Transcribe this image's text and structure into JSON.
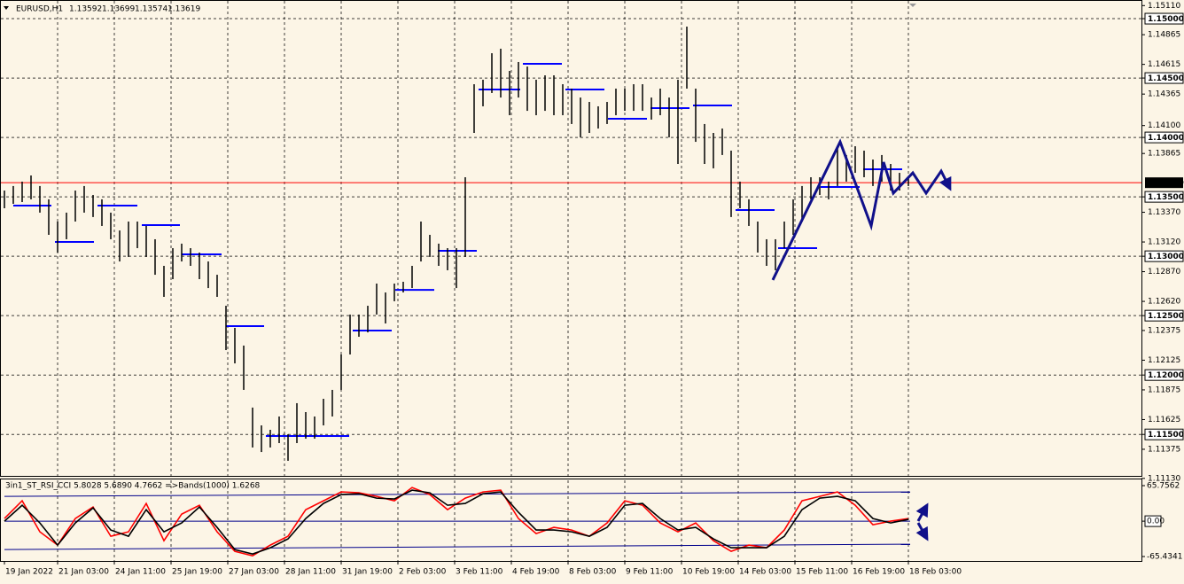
{
  "chart_data": [
    {
      "type": "hl_bar",
      "title": "EURUSD,H1",
      "quote": [
        1.13592,
        1.13699,
        1.13574,
        1.13619
      ],
      "x": [
        0,
        5,
        10,
        15,
        20,
        25,
        30,
        35,
        40,
        45,
        50,
        55,
        60,
        65,
        70,
        75,
        80,
        85,
        90,
        95,
        100,
        105,
        110,
        115,
        120,
        125,
        130,
        135,
        140,
        145,
        150,
        155,
        160,
        165,
        170,
        175,
        180,
        185,
        190,
        195,
        200,
        205,
        210,
        215,
        220,
        225,
        230,
        235,
        240,
        245,
        250,
        255,
        260,
        265,
        270,
        275,
        280,
        285,
        290,
        295,
        300,
        305,
        310,
        315,
        320,
        325,
        330,
        335,
        340,
        345,
        350,
        355,
        360,
        365,
        370,
        375,
        380,
        385,
        390,
        395,
        400,
        405,
        410,
        415,
        420,
        425,
        430,
        435,
        440,
        445,
        450,
        455,
        460,
        465,
        470,
        475,
        480,
        485,
        490,
        495,
        500,
        505,
        510
      ],
      "high": [
        1.13553,
        1.13591,
        1.13628,
        1.1368,
        1.13591,
        1.13479,
        1.13292,
        1.13367,
        1.13553,
        1.13591,
        1.13516,
        1.13479,
        1.13367,
        1.13217,
        1.13292,
        1.13292,
        1.13255,
        1.13143,
        1.12919,
        1.13068,
        1.13106,
        1.13068,
        1.13031,
        1.12956,
        1.12844,
        1.12583,
        1.12397,
        1.12248,
        1.11726,
        1.11576,
        1.11539,
        1.11651,
        1.11502,
        1.11763,
        1.11688,
        1.11651,
        1.118,
        1.11875,
        1.12173,
        1.12509,
        1.12509,
        1.12583,
        1.1277,
        1.12695,
        1.1277,
        1.12785,
        1.12919,
        1.13292,
        1.1318,
        1.13106,
        1.13068,
        1.13068,
        1.13665,
        1.14448,
        1.14486,
        1.14709,
        1.14747,
        1.1456,
        1.14635,
        1.14597,
        1.14486,
        1.14523,
        1.14523,
        1.14448,
        1.14411,
        1.14336,
        1.14299,
        1.14262,
        1.14299,
        1.14411,
        1.14411,
        1.14448,
        1.14448,
        1.14336,
        1.14411,
        1.14336,
        1.14486,
        1.14933,
        1.14411,
        1.14113,
        1.14038,
        1.14075,
        1.13889,
        1.13628,
        1.13479,
        1.13292,
        1.13143,
        1.13143,
        1.13292,
        1.13479,
        1.13591,
        1.13665,
        1.13665,
        1.13628,
        1.13926,
        1.13852,
        1.13926,
        1.13889,
        1.13814,
        1.13852,
        1.13777,
        1.13702,
        1.13665
      ],
      "low": [
        1.13404,
        1.13441,
        1.13456,
        1.13479,
        1.13367,
        1.1318,
        1.13031,
        1.13143,
        1.13292,
        1.13367,
        1.1333,
        1.13255,
        1.13143,
        1.12956,
        1.12994,
        1.13068,
        1.12994,
        1.12844,
        1.12658,
        1.12807,
        1.12956,
        1.12919,
        1.12807,
        1.12732,
        1.12658,
        1.1221,
        1.12098,
        1.11875,
        1.1139,
        1.11352,
        1.1139,
        1.11427,
        1.11278,
        1.11427,
        1.11464,
        1.11464,
        1.11576,
        1.11651,
        1.11875,
        1.12173,
        1.12322,
        1.12359,
        1.12509,
        1.12434,
        1.12621,
        1.12695,
        1.12732,
        1.12956,
        1.12994,
        1.12919,
        1.12882,
        1.12732,
        1.12994,
        1.14038,
        1.14262,
        1.14374,
        1.14336,
        1.14187,
        1.14336,
        1.14224,
        1.14187,
        1.14224,
        1.14187,
        1.14187,
        1.14113,
        1.14001,
        1.14038,
        1.14075,
        1.14113,
        1.14187,
        1.14224,
        1.14224,
        1.14224,
        1.1415,
        1.14187,
        1.14001,
        1.13777,
        1.14411,
        1.13963,
        1.13777,
        1.1374,
        1.13852,
        1.1333,
        1.13404,
        1.13255,
        1.13031,
        1.12919,
        1.12882,
        1.13068,
        1.1318,
        1.13292,
        1.13479,
        1.13516,
        1.13479,
        1.13591,
        1.13628,
        1.13702,
        1.13665,
        1.13591,
        1.13628,
        1.13553,
        1.13553,
        1.13591
      ],
      "color": "#000000",
      "xlim": [
        -2.5,
        641.5
      ],
      "xticks": [
        {
          "value": 0,
          "label": "19 Jan 2022"
        },
        {
          "value": 30,
          "label": "21 Jan 03:00"
        },
        {
          "value": 62,
          "label": "24 Jan 11:00"
        },
        {
          "value": 94,
          "label": "25 Jan 19:00"
        },
        {
          "value": 126,
          "label": "27 Jan 03:00"
        },
        {
          "value": 158,
          "label": "28 Jan 11:00"
        },
        {
          "value": 190,
          "label": "31 Jan 19:00"
        },
        {
          "value": 222,
          "label": "2 Feb 03:00"
        },
        {
          "value": 254,
          "label": "3 Feb 11:00"
        },
        {
          "value": 286,
          "label": "4 Feb 19:00"
        },
        {
          "value": 318,
          "label": "8 Feb 03:00"
        },
        {
          "value": 350,
          "label": "9 Feb 11:00"
        },
        {
          "value": 382,
          "label": "10 Feb 19:00"
        },
        {
          "value": 414,
          "label": "14 Feb 03:00"
        },
        {
          "value": 446,
          "label": "15 Feb 11:00"
        },
        {
          "value": 478,
          "label": "16 Feb 19:00"
        },
        {
          "value": 510,
          "label": "18 Feb 03:00"
        }
      ],
      "ylim": [
        1.11151,
        1.15157
      ],
      "yticks": [
        {
          "value": 1.15,
          "label": "1.15000"
        },
        {
          "value": 1.145,
          "label": "1.14500"
        },
        {
          "value": 1.14,
          "label": "1.14000"
        },
        {
          "value": 1.135,
          "label": "1.13500"
        },
        {
          "value": 1.13,
          "label": "1.13000"
        },
        {
          "value": 1.125,
          "label": "1.12500"
        },
        {
          "value": 1.12,
          "label": "1.12000"
        },
        {
          "value": 1.115,
          "label": "1.11500"
        }
      ],
      "yticks_minor": [
        {
          "value": 1.1511,
          "label": "1.15110"
        },
        1.14865,
        1.14615,
        1.14365,
        {
          "value": 1.141,
          "label": "1.14100"
        },
        1.13865,
        {
          "value": 1.1337,
          "label": "1.13370"
        },
        {
          "value": 1.1312,
          "label": "1.13120"
        },
        {
          "value": 1.1287,
          "label": "1.12870"
        },
        {
          "value": 1.1262,
          "label": "1.12620"
        },
        1.12375,
        1.12125,
        1.11875,
        1.11625,
        1.11375,
        {
          "value": 1.1113,
          "label": "1.11130"
        }
      ],
      "grid": true,
      "levels": [
        {
          "x": [
            5,
            26.5
          ],
          "value": 1.13426
        },
        {
          "x": [
            28.5,
            50.5
          ],
          "value": 1.1312
        },
        {
          "x": [
            52.5,
            75
          ],
          "value": 1.13426
        },
        {
          "x": [
            77.5,
            99
          ],
          "value": 1.13262
        },
        {
          "x": [
            100,
            122.5
          ],
          "value": 1.13016
        },
        {
          "x": [
            125,
            146.5
          ],
          "value": 1.12412
        },
        {
          "x": [
            147.5,
            194.5
          ],
          "value": 1.11487
        },
        {
          "x": [
            196.5,
            218.5
          ],
          "value": 1.12374
        },
        {
          "x": [
            220.5,
            242.5
          ],
          "value": 1.12717
        },
        {
          "x": [
            244.5,
            266.5
          ],
          "value": 1.13046
        },
        {
          "x": [
            267.5,
            291
          ],
          "value": 1.14404
        },
        {
          "x": [
            292.5,
            314.5
          ],
          "value": 1.1462
        },
        {
          "x": [
            316.5,
            338.5
          ],
          "value": 1.14404
        },
        {
          "x": [
            340.5,
            362.5
          ],
          "value": 1.14157
        },
        {
          "x": [
            364.5,
            386.5
          ],
          "value": 1.14247
        },
        {
          "x": [
            388.5,
            410.5
          ],
          "value": 1.14269
        },
        {
          "x": [
            412.5,
            434.5
          ],
          "value": 1.13389
        },
        {
          "x": [
            436.5,
            458.5
          ],
          "value": 1.13068
        },
        {
          "x": [
            460.5,
            482.5
          ],
          "value": 1.13583
        },
        {
          "x": [
            484.5,
            506.5
          ],
          "value": 1.13732
        }
      ],
      "level_color": "#0000ff",
      "zigzag": {
        "x": [
          433.5,
          471.5,
          489,
          496,
          501.5,
          512.5,
          520,
          528.5,
          533.5
        ],
        "values": [
          1.128,
          1.13963,
          1.13255,
          1.13792,
          1.13531,
          1.13702,
          1.13531,
          1.13717,
          1.13568
        ],
        "color": "#10108a"
      },
      "bid": 1.13619,
      "bid_color": "#ff0000"
    },
    {
      "type": "line",
      "title": "3in1_ST_RSI_CCI 5.8028 5.6890 4.7662  =>Bands(1000) 1.6268",
      "x": [
        0,
        10,
        20,
        30,
        40,
        50,
        60,
        70,
        80,
        90,
        100,
        110,
        120,
        130,
        140,
        150,
        160,
        170,
        180,
        190,
        200,
        210,
        220,
        230,
        240,
        250,
        260,
        270,
        280,
        290,
        300,
        310,
        320,
        330,
        340,
        350,
        360,
        370,
        380,
        390,
        400,
        410,
        420,
        430,
        440,
        450,
        460,
        470,
        480,
        490,
        500,
        510
      ],
      "series": [
        {
          "color": "#ff0000",
          "values": [
            4.9,
            37.7,
            -19.7,
            -44.3,
            4.9,
            26.2,
            -27.9,
            -19.7,
            32.8,
            -36.1,
            13.1,
            29.5,
            -19.7,
            -55.8,
            -64.0,
            -44.3,
            -27.9,
            21.3,
            37.7,
            54.1,
            52.5,
            45.9,
            37.7,
            62.3,
            49.2,
            21.3,
            42.6,
            54.1,
            57.4,
            4.9,
            -23.0,
            -11.5,
            -16.4,
            -27.9,
            -3.3,
            37.7,
            29.5,
            -3.3,
            -19.7,
            -3.3,
            -36.1,
            -55.8,
            -44.3,
            -49.2,
            -16.4,
            37.7,
            45.9,
            54.1,
            29.5,
            -6.6,
            0,
            4.9
          ]
        },
        {
          "color": "#000000",
          "values": [
            0,
            29.5,
            -3.3,
            -44.3,
            -3.3,
            24.6,
            -16.4,
            -27.9,
            21.3,
            -19.7,
            -3.3,
            26.2,
            -11.5,
            -52.5,
            -60.7,
            -49.2,
            -32.8,
            4.9,
            32.8,
            49.2,
            50.8,
            42.6,
            41.0,
            57.4,
            52.5,
            29.5,
            32.8,
            50.8,
            54.1,
            16.4,
            -16.4,
            -16.4,
            -19.7,
            -27.9,
            -11.5,
            29.5,
            32.8,
            4.9,
            -16.4,
            -11.5,
            -32.8,
            -49.2,
            -49.2,
            -49.2,
            -27.9,
            21.3,
            42.6,
            45.9,
            37.7,
            4.9,
            -3.3,
            3.3
          ]
        }
      ],
      "bands": [
        {
          "x": [
            0,
            511
          ],
          "values": [
            45.9,
            54.1
          ]
        },
        {
          "x": [
            0,
            511
          ],
          "values": [
            0,
            0
          ]
        },
        {
          "x": [
            0,
            511
          ],
          "values": [
            -52.5,
            -42.6
          ]
        }
      ],
      "band_color": "#00008b",
      "ylim": [
        -73.63,
        77.24
      ],
      "yticks": [
        65.7562,
        {
          "value": 0,
          "label": "0.00"
        },
        -65.4341
      ]
    }
  ]
}
